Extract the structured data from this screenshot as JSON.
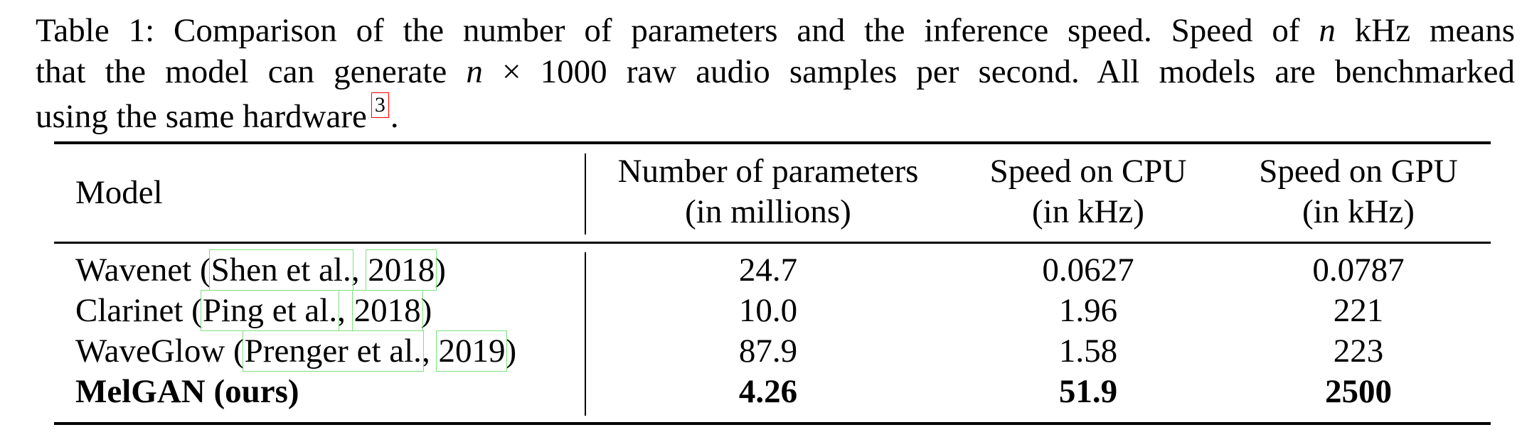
{
  "caption": {
    "line1_pre": "Table 1: Comparison of the number of parameters and the inference speed. Speed of ",
    "line1_var": "n",
    "line1_post": " kHz means",
    "line2_pre": "that the model can generate ",
    "line2_var": "n",
    "line2_times": " × ",
    "line2_post": "1000 raw audio samples per second. All models are benchmarked",
    "line3": "using the same hardware",
    "footnote": "3",
    "line3_end": "."
  },
  "table": {
    "headers": {
      "model": "Model",
      "params_line1": "Number of parameters",
      "params_line2": "(in millions)",
      "cpu_line1": "Speed on CPU",
      "cpu_line2": "(in kHz)",
      "gpu_line1": "Speed on GPU",
      "gpu_line2": "(in kHz)"
    },
    "rows": [
      {
        "name": "Wavenet",
        "open": " (",
        "author": "Shen et al.",
        "sep": ", ",
        "year": "2018",
        "close": ")",
        "params": "24.7",
        "cpu": "0.0627",
        "gpu": "0.0787"
      },
      {
        "name": "Clarinet",
        "open": " (",
        "author": "Ping et al.",
        "sep": ", ",
        "year": "2018",
        "close": ")",
        "params": "10.0",
        "cpu": "1.96",
        "gpu": "221"
      },
      {
        "name": "WaveGlow",
        "open": " (",
        "author": "Prenger et al.",
        "sep": ", ",
        "year": "2019",
        "close": ")",
        "params": "87.9",
        "cpu": "1.58",
        "gpu": "223"
      },
      {
        "name": "MelGAN (ours)",
        "params": "4.26",
        "cpu": "51.9",
        "gpu": "2500"
      }
    ]
  }
}
